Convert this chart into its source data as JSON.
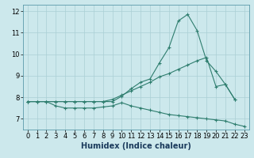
{
  "xlabel": "Humidex (Indice chaleur)",
  "bg_color": "#cce8ec",
  "line_color": "#2e7d6e",
  "grid_color": "#aacfd5",
  "xlim": [
    -0.5,
    23.5
  ],
  "ylim": [
    6.5,
    12.3
  ],
  "xticks": [
    0,
    1,
    2,
    3,
    4,
    5,
    6,
    7,
    8,
    9,
    10,
    11,
    12,
    13,
    14,
    15,
    16,
    17,
    18,
    19,
    20,
    21,
    22,
    23
  ],
  "yticks": [
    7,
    8,
    9,
    10,
    11,
    12
  ],
  "line1_x": [
    0,
    1,
    2,
    3,
    4,
    5,
    6,
    7,
    8,
    9,
    10,
    11,
    12,
    13,
    14,
    15,
    16,
    17,
    18,
    19,
    20,
    21,
    22
  ],
  "line1_y": [
    7.8,
    7.8,
    7.8,
    7.8,
    7.8,
    7.8,
    7.8,
    7.8,
    7.8,
    7.8,
    8.05,
    8.4,
    8.7,
    8.85,
    9.6,
    10.3,
    11.55,
    11.85,
    11.1,
    9.7,
    9.2,
    8.6,
    7.9
  ],
  "line2_x": [
    0,
    1,
    2,
    3,
    4,
    5,
    6,
    7,
    8,
    9,
    10,
    11,
    12,
    13,
    14,
    15,
    16,
    17,
    18,
    19,
    20,
    21,
    22
  ],
  "line2_y": [
    7.8,
    7.8,
    7.8,
    7.8,
    7.8,
    7.8,
    7.8,
    7.8,
    7.8,
    7.9,
    8.1,
    8.3,
    8.5,
    8.7,
    8.95,
    9.1,
    9.3,
    9.5,
    9.7,
    9.85,
    8.5,
    8.6,
    7.9
  ],
  "line3_x": [
    0,
    1,
    2,
    3,
    4,
    5,
    6,
    7,
    8,
    9,
    10,
    11,
    12,
    13,
    14,
    15,
    16,
    17,
    18,
    19,
    20,
    21,
    22,
    23
  ],
  "line3_y": [
    7.8,
    7.8,
    7.8,
    7.6,
    7.5,
    7.5,
    7.5,
    7.5,
    7.55,
    7.6,
    7.75,
    7.6,
    7.5,
    7.4,
    7.3,
    7.2,
    7.15,
    7.1,
    7.05,
    7.0,
    6.95,
    6.9,
    6.75,
    6.65
  ],
  "tick_fontsize": 6,
  "xlabel_fontsize": 7,
  "spine_color": "#5a9aaa"
}
